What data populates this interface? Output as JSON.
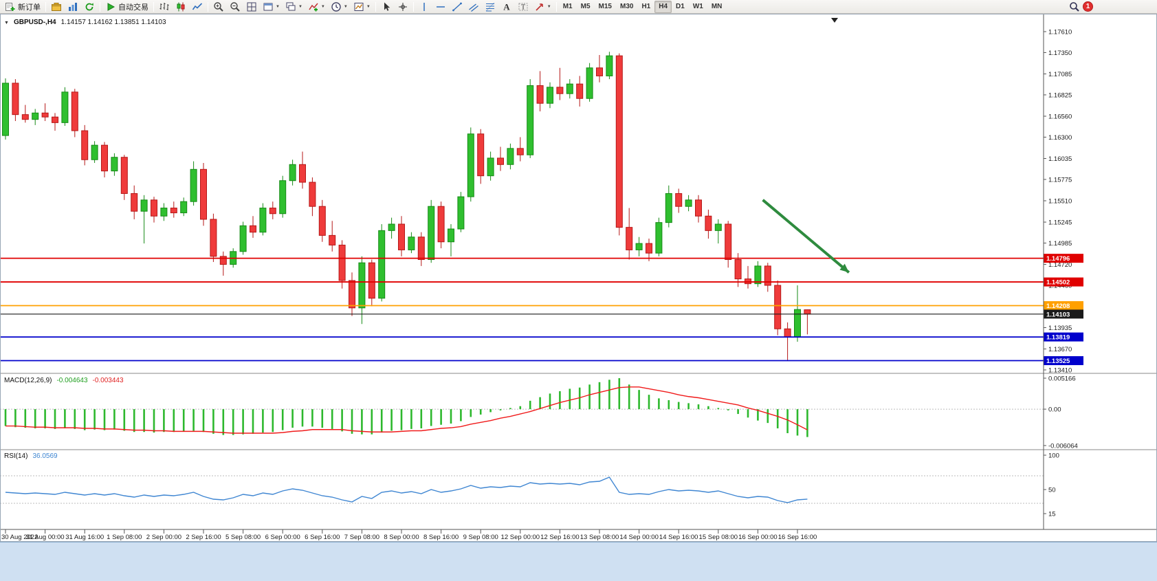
{
  "window": {
    "badge_count": "1"
  },
  "toolbar": {
    "new_order_label": "新订单",
    "auto_trading_label": "自动交易",
    "timeframes": [
      "M1",
      "M5",
      "M15",
      "M30",
      "H1",
      "H4",
      "D1",
      "W1",
      "MN"
    ],
    "active_timeframe": "H4",
    "icon_buttons": [
      "new-order",
      "profiles",
      "market-watch",
      "refresh",
      "auto-trading",
      "bar-chart",
      "candlestick-chart",
      "line-chart",
      "zoom-in",
      "zoom-out",
      "tile-windows",
      "arrange-windows",
      "cascade-windows",
      "indicators",
      "periods",
      "templates",
      "cursor",
      "crosshair",
      "vertical-line",
      "horizontal-line",
      "trendline",
      "equidistant-channel",
      "fibonacci",
      "text",
      "text-label",
      "arrows",
      "search",
      "notifications"
    ]
  },
  "chart_data": {
    "type": "candlestick",
    "title": "GBPUSD-,H4",
    "ohlc_text": "1.14157 1.14162 1.13851 1.14103",
    "symbol": "GBPUSD-",
    "timeframe": "H4",
    "price_axis": {
      "ticks": [
        1.1761,
        1.1735,
        1.17085,
        1.16825,
        1.1656,
        1.163,
        1.16035,
        1.15775,
        1.1551,
        1.15245,
        1.14985,
        1.1472,
        1.1446,
        1.14195,
        1.13935,
        1.1367,
        1.1341
      ]
    },
    "time_axis": {
      "bars": [
        0,
        4,
        8,
        12,
        16,
        20,
        24,
        28,
        32,
        36,
        40,
        44,
        48,
        52,
        56,
        60,
        64,
        68,
        72,
        76,
        80
      ],
      "labels": [
        "30 Aug 2022",
        "31 Aug 00:00",
        "31 Aug 16:00",
        "1 Sep 08:00",
        "2 Sep 00:00",
        "2 Sep 16:00",
        "5 Sep 08:00",
        "6 Sep 00:00",
        "6 Sep 16:00",
        "7 Sep 08:00",
        "8 Sep 00:00",
        "8 Sep 16:00",
        "9 Sep 08:00",
        "12 Sep 00:00",
        "12 Sep 16:00",
        "13 Sep 08:00",
        "14 Sep 00:00",
        "14 Sep 16:00",
        "15 Sep 08:00",
        "16 Sep 00:00",
        "16 Sep 16:00"
      ]
    },
    "candles": [
      [
        1.1632,
        1.1703,
        1.1627,
        1.1697
      ],
      [
        1.1697,
        1.1702,
        1.165,
        1.1658
      ],
      [
        1.1658,
        1.167,
        1.1648,
        1.1652
      ],
      [
        1.1652,
        1.1665,
        1.1645,
        1.166
      ],
      [
        1.166,
        1.1672,
        1.165,
        1.1655
      ],
      [
        1.1655,
        1.166,
        1.1638,
        1.1648
      ],
      [
        1.1648,
        1.1692,
        1.1644,
        1.1686
      ],
      [
        1.1686,
        1.169,
        1.163,
        1.1638
      ],
      [
        1.1638,
        1.1645,
        1.1595,
        1.1602
      ],
      [
        1.1602,
        1.1625,
        1.1598,
        1.162
      ],
      [
        1.162,
        1.1624,
        1.158,
        1.1588
      ],
      [
        1.1588,
        1.161,
        1.1582,
        1.1605
      ],
      [
        1.1605,
        1.1608,
        1.1552,
        1.156
      ],
      [
        1.156,
        1.157,
        1.1528,
        1.1538
      ],
      [
        1.1538,
        1.1558,
        1.1498,
        1.1552
      ],
      [
        1.1552,
        1.1556,
        1.1524,
        1.1532
      ],
      [
        1.1532,
        1.1548,
        1.1526,
        1.1542
      ],
      [
        1.1542,
        1.155,
        1.153,
        1.1536
      ],
      [
        1.1536,
        1.1555,
        1.1532,
        1.155
      ],
      [
        1.155,
        1.16,
        1.1545,
        1.159
      ],
      [
        1.159,
        1.1598,
        1.152,
        1.1528
      ],
      [
        1.1528,
        1.1535,
        1.1475,
        1.1482
      ],
      [
        1.1482,
        1.1488,
        1.1458,
        1.1472
      ],
      [
        1.1472,
        1.1492,
        1.1468,
        1.1488
      ],
      [
        1.1488,
        1.1525,
        1.1484,
        1.152
      ],
      [
        1.152,
        1.1532,
        1.1505,
        1.1512
      ],
      [
        1.1512,
        1.1548,
        1.1508,
        1.1542
      ],
      [
        1.1542,
        1.155,
        1.1528,
        1.1535
      ],
      [
        1.1535,
        1.1582,
        1.153,
        1.1576
      ],
      [
        1.1576,
        1.1602,
        1.157,
        1.1596
      ],
      [
        1.1596,
        1.1612,
        1.1566,
        1.1574
      ],
      [
        1.1574,
        1.158,
        1.1532,
        1.1544
      ],
      [
        1.1544,
        1.1552,
        1.15,
        1.1508
      ],
      [
        1.1508,
        1.1526,
        1.1488,
        1.1496
      ],
      [
        1.1496,
        1.1502,
        1.1442,
        1.1452
      ],
      [
        1.1452,
        1.1462,
        1.1408,
        1.1418
      ],
      [
        1.1418,
        1.1482,
        1.1398,
        1.1474
      ],
      [
        1.1474,
        1.1478,
        1.142,
        1.143
      ],
      [
        1.143,
        1.1522,
        1.1426,
        1.1514
      ],
      [
        1.1514,
        1.153,
        1.1504,
        1.1522
      ],
      [
        1.1522,
        1.1532,
        1.1482,
        1.149
      ],
      [
        1.149,
        1.1512,
        1.1486,
        1.1506
      ],
      [
        1.1506,
        1.1512,
        1.147,
        1.1478
      ],
      [
        1.1478,
        1.1552,
        1.1474,
        1.1544
      ],
      [
        1.1544,
        1.155,
        1.1492,
        1.15
      ],
      [
        1.15,
        1.1522,
        1.1482,
        1.1516
      ],
      [
        1.1516,
        1.1562,
        1.1512,
        1.1556
      ],
      [
        1.1556,
        1.1642,
        1.155,
        1.1634
      ],
      [
        1.1634,
        1.164,
        1.1572,
        1.1582
      ],
      [
        1.1582,
        1.1612,
        1.1576,
        1.1604
      ],
      [
        1.1604,
        1.1618,
        1.1588,
        1.1596
      ],
      [
        1.1596,
        1.1622,
        1.159,
        1.1616
      ],
      [
        1.1616,
        1.163,
        1.16,
        1.1608
      ],
      [
        1.1608,
        1.1702,
        1.1604,
        1.1694
      ],
      [
        1.1694,
        1.1712,
        1.1662,
        1.1672
      ],
      [
        1.1672,
        1.1698,
        1.1666,
        1.1692
      ],
      [
        1.1692,
        1.1716,
        1.1676,
        1.1684
      ],
      [
        1.1684,
        1.1702,
        1.1678,
        1.1696
      ],
      [
        1.1696,
        1.1706,
        1.1668,
        1.1678
      ],
      [
        1.1678,
        1.1722,
        1.1674,
        1.1716
      ],
      [
        1.1716,
        1.1732,
        1.1698,
        1.1706
      ],
      [
        1.1706,
        1.1736,
        1.1702,
        1.1731
      ],
      [
        1.1731,
        1.1734,
        1.1508,
        1.1518
      ],
      [
        1.1518,
        1.1542,
        1.1478,
        1.149
      ],
      [
        1.149,
        1.1506,
        1.1482,
        1.1498
      ],
      [
        1.1498,
        1.1504,
        1.1476,
        1.1486
      ],
      [
        1.1486,
        1.153,
        1.1482,
        1.1524
      ],
      [
        1.1524,
        1.157,
        1.1518,
        1.156
      ],
      [
        1.156,
        1.1566,
        1.1536,
        1.1544
      ],
      [
        1.1544,
        1.1558,
        1.1538,
        1.1552
      ],
      [
        1.1552,
        1.1558,
        1.1524,
        1.1532
      ],
      [
        1.1532,
        1.154,
        1.1504,
        1.1514
      ],
      [
        1.1514,
        1.1528,
        1.1498,
        1.1522
      ],
      [
        1.1522,
        1.1526,
        1.1468,
        1.1478
      ],
      [
        1.1478,
        1.1486,
        1.1444,
        1.1454
      ],
      [
        1.1454,
        1.147,
        1.1442,
        1.1448
      ],
      [
        1.1448,
        1.1476,
        1.1444,
        1.147
      ],
      [
        1.147,
        1.1474,
        1.1438,
        1.1446
      ],
      [
        1.1446,
        1.1452,
        1.1384,
        1.1392
      ],
      [
        1.1392,
        1.14,
        1.1352,
        1.1382
      ],
      [
        1.1382,
        1.1446,
        1.1376,
        1.1416
      ],
      [
        1.14157,
        1.14162,
        1.13851,
        1.14103
      ]
    ],
    "hlines": [
      {
        "price": 1.14796,
        "color": "#e00000",
        "current": false
      },
      {
        "price": 1.14502,
        "color": "#e00000",
        "current": false
      },
      {
        "price": 1.14208,
        "color": "#ffa000",
        "current": false
      },
      {
        "price": 1.14103,
        "color": "#1a1a1a",
        "current": true
      },
      {
        "price": 1.13819,
        "color": "#0000cc",
        "current": false
      },
      {
        "price": 1.13525,
        "color": "#0000cc",
        "current": false
      }
    ],
    "arrow": {
      "from": {
        "bar": 76.5,
        "price": 1.1552
      },
      "to": {
        "bar": 85.2,
        "price": 1.1462
      },
      "color": "#2e8b3e"
    },
    "macd": {
      "label": "MACD(12,26,9)",
      "main_value": "-0.004643",
      "signal_value": "-0.003443",
      "axis_labels": [
        "0.005166",
        "0.00",
        "-0.006064"
      ],
      "axis_max": 0.005166,
      "axis_min": -0.006064,
      "histogram": [
        -0.0028,
        -0.003,
        -0.0031,
        -0.0032,
        -0.0032,
        -0.0033,
        -0.0032,
        -0.0033,
        -0.0035,
        -0.0034,
        -0.0035,
        -0.0034,
        -0.0036,
        -0.0038,
        -0.0038,
        -0.0039,
        -0.0038,
        -0.0038,
        -0.0037,
        -0.0036,
        -0.0038,
        -0.0041,
        -0.0043,
        -0.0043,
        -0.0042,
        -0.0041,
        -0.0039,
        -0.0038,
        -0.0035,
        -0.0031,
        -0.0029,
        -0.0029,
        -0.0031,
        -0.0033,
        -0.0037,
        -0.0041,
        -0.0042,
        -0.0042,
        -0.0039,
        -0.0036,
        -0.0035,
        -0.0033,
        -0.0032,
        -0.0028,
        -0.0026,
        -0.0024,
        -0.002,
        -0.0013,
        -0.0009,
        -0.0005,
        -0.0002,
        0.0002,
        0.0005,
        0.0014,
        0.002,
        0.0026,
        0.003,
        0.0034,
        0.0036,
        0.0041,
        0.0045,
        0.0049,
        0.005166,
        0.0041,
        0.0032,
        0.0024,
        0.0018,
        0.0015,
        0.0012,
        0.001,
        0.0008,
        0.0005,
        0.0002,
        -0.0002,
        -0.0008,
        -0.0014,
        -0.0019,
        -0.0023,
        -0.0032,
        -0.004,
        -0.0044,
        -0.004643
      ],
      "signal": [
        -0.0028,
        -0.0028,
        -0.0029,
        -0.003,
        -0.003,
        -0.0031,
        -0.0031,
        -0.0031,
        -0.0032,
        -0.0032,
        -0.0033,
        -0.0033,
        -0.0034,
        -0.0035,
        -0.0035,
        -0.0036,
        -0.0036,
        -0.0037,
        -0.0037,
        -0.0037,
        -0.0037,
        -0.0038,
        -0.0039,
        -0.004,
        -0.004,
        -0.004,
        -0.004,
        -0.004,
        -0.0039,
        -0.0037,
        -0.0036,
        -0.0034,
        -0.0034,
        -0.0034,
        -0.0034,
        -0.0036,
        -0.0037,
        -0.0038,
        -0.0038,
        -0.0038,
        -0.0037,
        -0.0036,
        -0.0036,
        -0.0034,
        -0.0032,
        -0.0031,
        -0.0029,
        -0.0025,
        -0.0022,
        -0.0019,
        -0.0015,
        -0.0012,
        -0.0008,
        -0.0004,
        0.0001,
        0.0006,
        0.0011,
        0.0015,
        0.0019,
        0.0024,
        0.0028,
        0.0032,
        0.0036,
        0.0037,
        0.0037,
        0.0034,
        0.0031,
        0.0028,
        0.0024,
        0.0021,
        0.0019,
        0.0016,
        0.0013,
        0.001,
        0.0007,
        0.0002,
        -0.0002,
        -0.0007,
        -0.0012,
        -0.0018,
        -0.0026,
        -0.003443
      ]
    },
    "rsi": {
      "label": "RSI(14)",
      "value": "36.0569",
      "axis_labels": [
        "100",
        "50",
        "15"
      ],
      "levels": [
        70,
        30
      ],
      "values": [
        46,
        45,
        44,
        45,
        44,
        43,
        46,
        44,
        42,
        44,
        42,
        44,
        41,
        39,
        42,
        40,
        42,
        41,
        43,
        46,
        40,
        36,
        35,
        38,
        43,
        41,
        45,
        43,
        48,
        51,
        49,
        45,
        41,
        39,
        35,
        32,
        40,
        37,
        46,
        48,
        45,
        47,
        44,
        50,
        46,
        48,
        51,
        56,
        52,
        54,
        53,
        55,
        54,
        60,
        58,
        59,
        58,
        59,
        57,
        61,
        62,
        68,
        46,
        43,
        44,
        43,
        47,
        50,
        48,
        49,
        48,
        46,
        48,
        44,
        40,
        38,
        40,
        39,
        34,
        31,
        35,
        36.0569
      ]
    }
  }
}
